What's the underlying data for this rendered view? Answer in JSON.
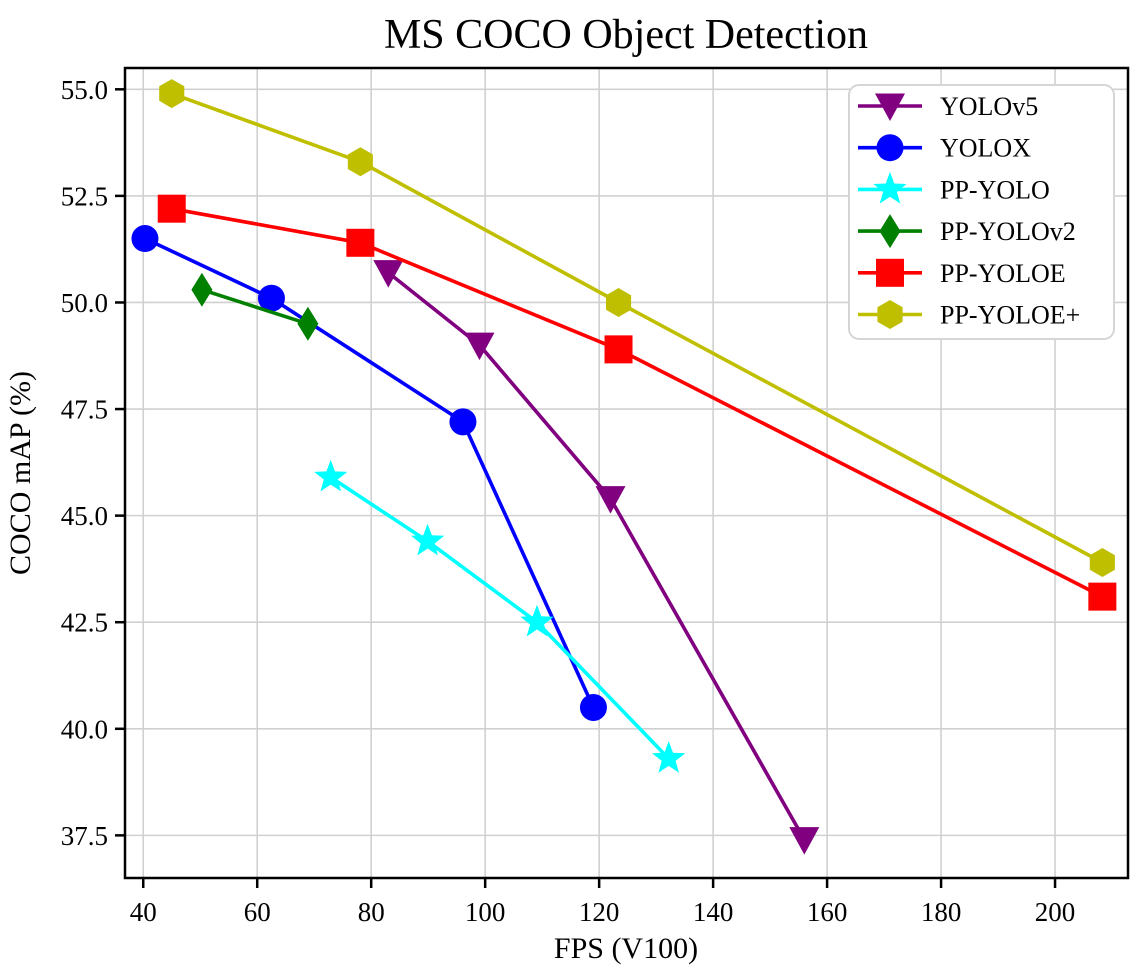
{
  "chart_data": {
    "type": "line",
    "title": "MS COCO Object Detection",
    "xlabel": "FPS (V100)",
    "ylabel": "COCO mAP (%)",
    "xlim": [
      36.8,
      212.8
    ],
    "ylim": [
      36.5,
      55.5
    ],
    "x_ticks": [
      40,
      60,
      80,
      100,
      120,
      140,
      160,
      180,
      200
    ],
    "y_ticks": [
      37.5,
      40.0,
      42.5,
      45.0,
      47.5,
      50.0,
      52.5,
      55.0
    ],
    "grid": true,
    "legend_position": "upper-right",
    "series": [
      {
        "name": "YOLOv5",
        "color": "#800080",
        "marker": "triangle-down",
        "x": [
          83,
          99,
          122,
          156
        ],
        "y": [
          50.7,
          49.0,
          45.4,
          37.4
        ]
      },
      {
        "name": "YOLOX",
        "color": "#0000ff",
        "marker": "circle",
        "x": [
          40.3,
          62.5,
          96.1,
          119.0
        ],
        "y": [
          51.5,
          50.1,
          47.2,
          40.5
        ]
      },
      {
        "name": "PP-YOLO",
        "color": "#00ffff",
        "marker": "star",
        "x": [
          72.9,
          89.9,
          109.1,
          132.2
        ],
        "y": [
          45.9,
          44.4,
          42.5,
          39.3
        ]
      },
      {
        "name": "PP-YOLOv2",
        "color": "#008000",
        "marker": "thin-diamond",
        "x": [
          50.3,
          68.9
        ],
        "y": [
          50.3,
          49.5
        ]
      },
      {
        "name": "PP-YOLOE",
        "color": "#ff0000",
        "marker": "square",
        "x": [
          45.0,
          78.1,
          123.4,
          208.3
        ],
        "y": [
          52.2,
          51.4,
          48.9,
          43.1
        ]
      },
      {
        "name": "PP-YOLOE+",
        "color": "#bfbf00",
        "marker": "hexagon",
        "x": [
          45.0,
          78.1,
          123.4,
          208.3
        ],
        "y": [
          54.9,
          53.3,
          50.0,
          43.9
        ]
      }
    ]
  },
  "colors": {
    "background": "#ffffff",
    "grid": "#d0d0d0",
    "axis": "#000000",
    "text": "#000000",
    "legend_border": "#d5d5d5",
    "legend_background": "#ffffff"
  }
}
